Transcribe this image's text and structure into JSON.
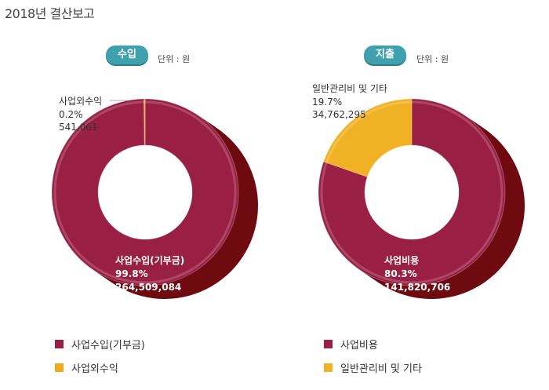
{
  "page": {
    "title": "2018년 결산보고"
  },
  "chart_data": [
    {
      "type": "pie",
      "title": "수입",
      "unit_label": "단위 : 원",
      "series": [
        {
          "name": "사업수입(기부금)",
          "percent_label": "99.8%",
          "value_label": "264,509,084",
          "value": 264509084,
          "percent": 99.8,
          "color": "#9a1f45",
          "shadow": "#6e0b10"
        },
        {
          "name": "사업외수익",
          "percent_label": "0.2%",
          "value_label": "541,061",
          "value": 541061,
          "percent": 0.2,
          "color": "#f0a81e",
          "shadow": "#b88000"
        }
      ]
    },
    {
      "type": "pie",
      "title": "지출",
      "unit_label": "단위 : 원",
      "series": [
        {
          "name": "사업비용",
          "percent_label": "80.3%",
          "value_label": "141,820,706",
          "value": 141820706,
          "percent": 80.3,
          "color": "#9a1f45",
          "shadow": "#6e0b10"
        },
        {
          "name": "일반관리비 및 기타",
          "percent_label": "19.7%",
          "value_label": "34,762,295",
          "value": 34762295,
          "percent": 19.7,
          "color": "#f0b224",
          "shadow": "#c28c00"
        }
      ]
    }
  ]
}
